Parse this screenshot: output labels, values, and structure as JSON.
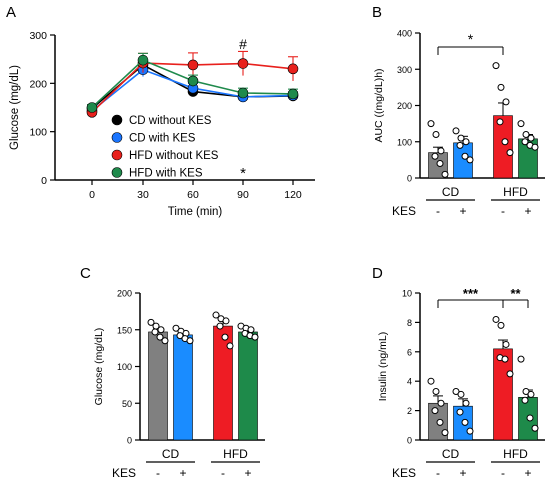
{
  "panels": {
    "A": {
      "letter": "A"
    },
    "B": {
      "letter": "B"
    },
    "C": {
      "letter": "C"
    },
    "D": {
      "letter": "D"
    }
  },
  "group_labels": {
    "cd": "CD",
    "hfd": "HFD",
    "kes": "KES",
    "minus": "-",
    "plus": "+"
  },
  "colors": {
    "cd_wo": "#000000",
    "cd_w": "#1a75ff",
    "hfd_wo": "#e8201c",
    "hfd_w": "#1f8a4c",
    "bar_cd_wo": "#808080",
    "bar_cd_w": "#1a8cff",
    "bar_hfd_wo": "#ee1c24",
    "bar_hfd_w": "#1e8a4a"
  },
  "chart_data": [
    {
      "panel": "A",
      "type": "line",
      "xlabel": "Time (min)",
      "ylabel": "Glucose (mg/dL)",
      "x": [
        0,
        30,
        60,
        90,
        120
      ],
      "xticks": [
        "0",
        "30",
        "60",
        "90",
        "120"
      ],
      "yticks": [
        "0",
        "100",
        "200",
        "300"
      ],
      "ylim": [
        0,
        300
      ],
      "series": [
        {
          "name": "CD without KES",
          "values": [
            148,
            238,
            183,
            172,
            174
          ],
          "err": [
            8,
            12,
            8,
            6,
            8
          ]
        },
        {
          "name": "CD with KES",
          "values": [
            143,
            228,
            190,
            172,
            175
          ],
          "err": [
            8,
            14,
            10,
            8,
            6
          ]
        },
        {
          "name": "HFD without KES",
          "values": [
            140,
            242,
            238,
            241,
            230
          ],
          "err": [
            6,
            20,
            25,
            25,
            25
          ]
        },
        {
          "name": "HFD with KES",
          "values": [
            150,
            248,
            205,
            180,
            178
          ],
          "err": [
            6,
            14,
            12,
            10,
            10
          ]
        }
      ],
      "annotations": [
        {
          "x": 90,
          "text": "#"
        },
        {
          "x": 90,
          "text": "*"
        }
      ],
      "legend": "bottom-right"
    },
    {
      "panel": "B",
      "type": "bar",
      "ylabel": "AUC ((mg/dL)h)",
      "yticks": [
        "0",
        "100",
        "200",
        "300",
        "400"
      ],
      "ylim": [
        0,
        400
      ],
      "groups": [
        "CD",
        "HFD"
      ],
      "bars": [
        {
          "group": "CD",
          "kes": "-",
          "value": 70,
          "err": 15,
          "points": [
            150,
            120,
            75,
            60,
            40,
            10
          ]
        },
        {
          "group": "CD",
          "kes": "+",
          "value": 97,
          "err": 18,
          "points": [
            130,
            110,
            100,
            90,
            60,
            50
          ]
        },
        {
          "group": "HFD",
          "kes": "-",
          "value": 172,
          "err": 35,
          "points": [
            310,
            250,
            210,
            155,
            100,
            70
          ]
        },
        {
          "group": "HFD",
          "kes": "+",
          "value": 108,
          "err": 12,
          "points": [
            150,
            120,
            110,
            100,
            90,
            85
          ]
        }
      ],
      "significance": [
        {
          "from": 0,
          "to": 2,
          "text": "*"
        }
      ]
    },
    {
      "panel": "C",
      "type": "bar",
      "ylabel": "Glucose (mg/dL)",
      "yticks": [
        "0",
        "50",
        "100",
        "150",
        "200"
      ],
      "ylim": [
        0,
        200
      ],
      "groups": [
        "CD",
        "HFD"
      ],
      "bars": [
        {
          "group": "CD",
          "kes": "-",
          "value": 147,
          "err": 5,
          "points": [
            160,
            155,
            150,
            147,
            140,
            135
          ]
        },
        {
          "group": "CD",
          "kes": "+",
          "value": 143,
          "err": 4,
          "points": [
            152,
            148,
            145,
            142,
            138,
            135
          ]
        },
        {
          "group": "HFD",
          "kes": "-",
          "value": 155,
          "err": 8,
          "points": [
            170,
            165,
            162,
            155,
            140,
            128
          ]
        },
        {
          "group": "HFD",
          "kes": "+",
          "value": 147,
          "err": 3,
          "points": [
            155,
            152,
            150,
            145,
            142,
            140
          ]
        }
      ]
    },
    {
      "panel": "D",
      "type": "bar",
      "ylabel": "Insulin (ng/mL)",
      "yticks": [
        "0",
        "2",
        "4",
        "6",
        "8",
        "10"
      ],
      "ylim": [
        0,
        10
      ],
      "groups": [
        "CD",
        "HFD"
      ],
      "bars": [
        {
          "group": "CD",
          "kes": "-",
          "value": 2.5,
          "err": 0.5,
          "points": [
            4.0,
            3.3,
            2.5,
            2.0,
            1.2,
            0.5
          ]
        },
        {
          "group": "CD",
          "kes": "+",
          "value": 2.3,
          "err": 0.5,
          "points": [
            3.3,
            3.1,
            2.5,
            1.9,
            1.2,
            0.6
          ]
        },
        {
          "group": "HFD",
          "kes": "-",
          "value": 6.2,
          "err": 0.6,
          "points": [
            8.2,
            7.8,
            6.5,
            5.6,
            5.5,
            4.5
          ]
        },
        {
          "group": "HFD",
          "kes": "+",
          "value": 2.9,
          "err": 0.5,
          "points": [
            5.5,
            3.3,
            3.1,
            2.7,
            1.5,
            0.8
          ]
        }
      ],
      "significance": [
        {
          "from": 0,
          "to": 2,
          "text": "***"
        },
        {
          "from": 2,
          "to": 3,
          "text": "**"
        }
      ]
    }
  ]
}
